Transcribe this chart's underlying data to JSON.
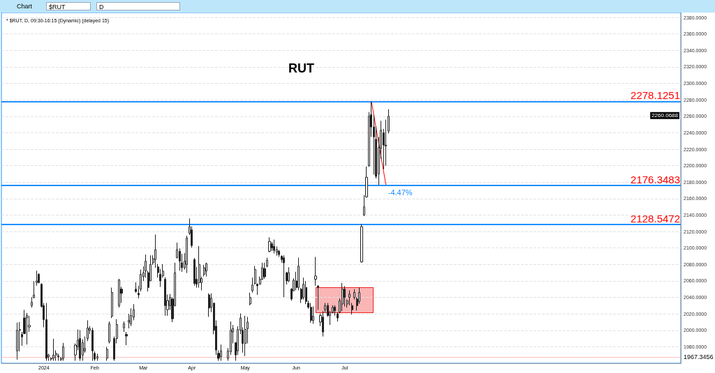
{
  "chart_data": {
    "type": "candlestick",
    "title": "RUT",
    "subtitle": "* $RUT, D, 09:30-16:15 (Dynamic) (delayed 15)",
    "color": "#222222",
    "categories": [
      null,
      null,
      null,
      null,
      null,
      null,
      null,
      null,
      null,
      null,
      null,
      null,
      null,
      null,
      null,
      null,
      null,
      "2024",
      null,
      null,
      null,
      null,
      null,
      null,
      null,
      null,
      null,
      null,
      null,
      null,
      null,
      null,
      null,
      null,
      null,
      null,
      null,
      null,
      "Feb",
      null,
      null,
      null,
      null,
      null,
      null,
      null,
      null,
      null,
      null,
      null,
      null,
      null,
      null,
      null,
      null,
      null,
      null,
      null,
      "Mar",
      null,
      null,
      null,
      null,
      null,
      null,
      null,
      null,
      null,
      null,
      null,
      null,
      null,
      null,
      null,
      null,
      null,
      null,
      null,
      "Apr",
      null,
      null,
      null,
      null,
      null,
      null,
      null,
      null,
      null,
      null,
      null,
      null,
      null,
      null,
      null,
      null,
      null,
      null,
      null,
      null,
      null,
      "May",
      null,
      null,
      null,
      null,
      null,
      null,
      null,
      null,
      null,
      null,
      null,
      null,
      null,
      null,
      null,
      null,
      null,
      null,
      null,
      null,
      "Jun",
      null,
      null,
      null,
      null,
      null,
      null,
      null,
      null,
      null,
      null,
      null,
      null,
      null,
      null,
      null,
      null,
      null,
      null,
      null,
      "Jul",
      null,
      null,
      null,
      null,
      null,
      null,
      null,
      null,
      null,
      null,
      null,
      null,
      null,
      null,
      null,
      null,
      null,
      null,
      null,
      null,
      null,
      null,
      null,
      null,
      null,
      null,
      null,
      null,
      null,
      null,
      null,
      null,
      null,
      null,
      null,
      null,
      null,
      null,
      null,
      null,
      null,
      null,
      null,
      null,
      null,
      null,
      null,
      null,
      null,
      null,
      null,
      null,
      null,
      null,
      null,
      null,
      null,
      null,
      null,
      null,
      null,
      null,
      null,
      null,
      null,
      null,
      null,
      null,
      null,
      null,
      null,
      null,
      null,
      null,
      null,
      null,
      null,
      null,
      null,
      null,
      null,
      null,
      null,
      null,
      null,
      null,
      null,
      null,
      null,
      null,
      null,
      null,
      null,
      null,
      null,
      null,
      null,
      null,
      null,
      null,
      null,
      null,
      null,
      null,
      null,
      null,
      null,
      null,
      null,
      null,
      null,
      null,
      null,
      null,
      null,
      null,
      null,
      null,
      null,
      null,
      null,
      null,
      null,
      null,
      null,
      null,
      null,
      null,
      null,
      null,
      null,
      null,
      null,
      null,
      null,
      null,
      null,
      null
    ],
    "ohlc": [
      null,
      null,
      null,
      null,
      null,
      null,
      [
        1975,
        2009.4,
        1964.5,
        2000
      ],
      [
        2000,
        2010,
        1974.3,
        2001
      ],
      [
        1995,
        1998.1,
        1981.3,
        1992
      ],
      [
        2015,
        2024.8,
        1995.3,
        1996
      ],
      [
        2015,
        2021.1,
        1982.7,
        2018
      ],
      [
        2004,
        2017.7,
        1998.1,
        2006
      ],
      [
        2030,
        2040.2,
        2027.6,
        2034
      ],
      [
        2040,
        2059.8,
        2038.8,
        2043
      ],
      [
        2058,
        2072.4,
        2054.2,
        2060
      ],
      [
        2068,
        2069.6,
        2057,
        2058
      ],
      [
        2056,
        2057,
        2027.6,
        2029
      ],
      [
        2030,
        2033.2,
        2003.7,
        2013
      ],
      [
        2013,
        2033.2,
        1963,
        1966
      ],
      [
        1968,
        1971.5,
        1963,
        1970
      ],
      [
        1965,
        1967.3,
        1963,
        1966
      ],
      [
        1966,
        1989.7,
        1963,
        1970
      ],
      [
        1970,
        1975.7,
        1963,
        1972
      ],
      [
        1968,
        1971.5,
        1963,
        1969
      ],
      [
        1964,
        1967.3,
        1963,
        1966
      ],
      [
        1966,
        1984.7,
        1963,
        1980
      ],
      null,
      null,
      null,
      null,
      [
        1970,
        1984.1,
        1963,
        1982
      ],
      [
        1980,
        2001,
        1975.7,
        1988
      ],
      [
        1990,
        2000.4,
        1963,
        1966
      ],
      [
        1970,
        1989.2,
        1963,
        1985
      ],
      [
        1975,
        1992.5,
        1972.9,
        1978
      ],
      [
        1990,
        2012.1,
        1986.9,
        2003
      ],
      [
        2000,
        2005.1,
        1995.3,
        2002
      ],
      [
        2000,
        2003.2,
        1963,
        1975
      ],
      [
        1972,
        1974.3,
        1963,
        1965
      ],
      [
        1966,
        1971.5,
        1963,
        1968
      ],
      null,
      null,
      null,
      [
        1966,
        1979.9,
        1963,
        1977
      ],
      [
        1986,
        2010.7,
        1984.1,
        2008
      ],
      [
        2017,
        2051.9,
        2014.9,
        2046
      ],
      [
        1990,
        1992.5,
        1963,
        1965
      ],
      [
        1990,
        2013.5,
        1984.1,
        2007
      ],
      [
        2030,
        2062.6,
        2027.6,
        2061
      ],
      [
        2050,
        2052.8,
        2033.2,
        2045
      ],
      [
        2003,
        2010.7,
        1998.1,
        2008
      ],
      [
        1995,
        1998.1,
        1981.9,
        1993
      ],
      [
        2010,
        2020,
        2002.3,
        2012
      ],
      [
        2008,
        2026.7,
        2005.1,
        2018
      ],
      [
        2016,
        2031.8,
        2012.1,
        2025
      ],
      [
        2050,
        2058.4,
        2045.8,
        2047
      ],
      [
        2045,
        2054.2,
        2038.8,
        2043
      ],
      [
        2050,
        2073.8,
        2047.2,
        2068
      ],
      [
        2065,
        2077.7,
        2059.8,
        2070
      ],
      [
        2072,
        2092,
        2064,
        2084
      ],
      [
        2070,
        2072.4,
        2047.2,
        2052
      ],
      [
        2060,
        2091.1,
        2059.8,
        2080
      ],
      [
        2082,
        2091.1,
        2079.4,
        2087
      ],
      [
        2086,
        2116.3,
        2076,
        2098
      ],
      [
        2077,
        2080.5,
        2064,
        2070
      ],
      [
        2068,
        2074.6,
        2052.8,
        2060
      ],
      [
        2066,
        2080.5,
        2064,
        2072
      ],
      [
        2062,
        2064.5,
        2017.7,
        2030
      ],
      [
        2025,
        2043.5,
        2017.7,
        2036
      ],
      [
        2030,
        2044.1,
        2024.8,
        2040
      ],
      [
        2038,
        2040.2,
        2009.9,
        2014
      ],
      [
        2030,
        2082.2,
        2029,
        2070
      ],
      [
        2088,
        2106.5,
        2087.8,
        2098
      ],
      [
        2096,
        2099.5,
        2072.4,
        2084
      ],
      [
        2082,
        2092.8,
        2071,
        2076
      ],
      [
        2076,
        2093.9,
        2073.8,
        2084
      ],
      [
        2080,
        2114.9,
        2069.6,
        2112
      ],
      [
        2118,
        2135.9,
        2115.8,
        2126
      ],
      [
        2122,
        2126.1,
        2100.4,
        2103
      ],
      [
        2086,
        2087.8,
        2054.2,
        2057
      ],
      [
        2062,
        2077.1,
        2051.9,
        2056
      ],
      [
        2058,
        2102.3,
        2051.9,
        2080
      ],
      [
        2058,
        2065.4,
        2048.6,
        2063
      ],
      [
        2068,
        2079.4,
        2065.4,
        2076
      ],
      [
        2072,
        2082.2,
        2065.4,
        2081
      ],
      [
        2043,
        2044.9,
        2016.3,
        2027
      ],
      [
        2028,
        2044.9,
        2022,
        2039
      ],
      [
        2033,
        2033.2,
        1995.3,
        2000
      ],
      [
        2005,
        2012.1,
        1970.1,
        1976
      ],
      [
        1972,
        1975.7,
        1963,
        1966
      ],
      [
        1968,
        1982.7,
        1963,
        1975
      ],
      null,
      null,
      [
        1966,
        1978.5,
        1963,
        1975
      ],
      [
        1974,
        2010.7,
        1970.1,
        2000
      ],
      [
        1998,
        2006.5,
        1984.1,
        2002
      ],
      [
        1985,
        1985.5,
        1963,
        1970
      ],
      [
        1975,
        2005.1,
        1970.1,
        2001
      ],
      [
        2000,
        2020.5,
        1995.3,
        2015
      ],
      [
        2000,
        2003.7,
        1972.9,
        1984
      ],
      [
        1984,
        2017.7,
        1968.7,
        2001
      ],
      [
        2002,
        2016.3,
        1984.1,
        2010
      ],
      [
        2032,
        2045.8,
        2030.4,
        2040
      ],
      [
        2048,
        2064,
        2045.8,
        2055
      ],
      [
        2057,
        2078,
        2055.6,
        2074
      ],
      [
        2056,
        2057,
        2043,
        2054
      ],
      [
        2056,
        2065.4,
        2055.6,
        2062
      ],
      [
        2062,
        2082.2,
        2061.2,
        2076
      ],
      [
        2075,
        2082.2,
        2062.6,
        2065
      ],
      [
        2078,
        2088.3,
        2076.6,
        2085
      ],
      [
        2096,
        2113,
        2094.8,
        2108
      ],
      [
        2105,
        2107.4,
        2096.2,
        2100
      ],
      [
        2102,
        2110.2,
        2093.4,
        2097
      ],
      [
        2095,
        2101.8,
        2090.6,
        2098
      ],
      [
        2096,
        2097.6,
        2089.2,
        2092
      ],
      [
        2090,
        2091.1,
        2082.2,
        2086
      ],
      [
        2088,
        2091.1,
        2040.2,
        2082
      ],
      [
        2070,
        2071,
        2055.6,
        2060
      ],
      [
        2060,
        2076.6,
        2058.4,
        2070
      ],
      [
        2050,
        2051.4,
        2036,
        2038
      ],
      [
        2048,
        2063.1,
        2047.2,
        2061
      ],
      [
        2060,
        2071,
        2048.6,
        2052
      ],
      [
        2052,
        2088.3,
        2048.6,
        2078
      ],
      [
        2050,
        2051.4,
        2033.2,
        2038
      ],
      [
        2040,
        2064,
        2037.4,
        2056
      ],
      [
        2052,
        2059.8,
        2031.8,
        2035
      ],
      [
        2033,
        2036,
        2026.2,
        2028
      ],
      [
        2028,
        2033.2,
        2009.3,
        2012
      ],
      [
        2012,
        2029,
        2007.9,
        2017
      ],
      [
        2062,
        2089.2,
        2054.2,
        2066
      ],
      [
        2054,
        2054.2,
        2024.8,
        2052
      ],
      [
        2010,
        2020.5,
        2005.1,
        2018
      ],
      [
        2016,
        2023.3,
        1992.5,
        1998
      ],
      [
        2025,
        2033.2,
        2021.9,
        2030
      ],
      [
        2030,
        2033.2,
        2016.3,
        2018
      ],
      [
        2018,
        2023.3,
        2006.5,
        2022
      ],
      [
        2022,
        2030.4,
        2020.5,
        2028
      ],
      [
        2028,
        2030.4,
        2017.7,
        2024
      ],
      [
        2020,
        2022,
        2010.7,
        2015
      ],
      [
        2022,
        2038.8,
        2020.5,
        2036
      ],
      [
        2032,
        2057.5,
        2023.3,
        2050
      ],
      [
        2050,
        2053.6,
        2029,
        2040
      ],
      [
        2032,
        2037.4,
        2027.6,
        2036
      ],
      [
        2040,
        2048.6,
        2030.4,
        2044
      ],
      [
        2030,
        2033.2,
        2019.1,
        2025
      ],
      [
        2040,
        2050,
        2037.4,
        2046
      ],
      [
        2038,
        2040.2,
        2024,
        2030
      ],
      [
        2035,
        2051.9,
        2032.3,
        2046
      ],
      [
        2083,
        2129.3,
        2082.2,
        2126
      ],
      [
        2140,
        2164.3,
        2138.8,
        2150
      ],
      [
        2162,
        2199,
        2161.2,
        2186
      ],
      [
        2200,
        2265.1,
        2198.5,
        2260
      ],
      [
        2262,
        2278.1,
        2234.9,
        2247
      ],
      [
        2247,
        2261.5,
        2189.2,
        2235
      ],
      [
        2232,
        2247.5,
        2184.5,
        2187
      ],
      [
        2190,
        2234.9,
        2176.3,
        2222
      ],
      [
        2221,
        2254.5,
        2208.3,
        2243
      ],
      [
        2240,
        2244.7,
        2195.7,
        2225
      ],
      [
        2225,
        2255.9,
        2199.9,
        2224
      ],
      [
        2242,
        2268.5,
        2239.1,
        2260.0688
      ],
      null,
      null,
      null,
      null,
      null,
      null,
      null,
      null,
      null,
      null,
      null,
      null,
      null,
      null,
      null,
      null,
      null,
      null,
      null,
      null,
      null,
      null,
      null,
      null,
      null,
      null,
      null,
      null,
      null,
      null,
      null,
      null,
      null,
      null,
      null,
      null,
      null,
      null,
      null,
      null,
      null,
      null,
      null,
      null,
      null,
      null,
      null,
      null,
      null,
      null,
      null,
      null,
      null,
      null,
      null,
      null,
      null,
      null,
      null,
      null,
      null,
      null,
      null,
      null,
      null,
      null,
      null,
      null,
      null,
      null,
      null,
      null,
      null,
      null,
      null,
      null,
      null,
      null,
      null,
      null,
      null,
      null,
      null,
      null,
      null,
      null,
      null,
      null,
      null,
      null,
      null,
      null,
      null,
      null,
      null,
      null,
      null,
      null,
      null,
      null,
      null,
      null,
      null,
      null,
      null,
      null,
      null,
      null,
      null,
      null,
      null,
      null,
      null,
      null,
      null,
      null,
      null,
      null,
      null,
      null
    ],
    "series": [
      {
        "type": "line",
        "color": "#ff0000",
        "values": [
          null,
          null,
          null,
          null,
          null,
          null,
          null,
          null,
          null,
          null,
          null,
          null,
          null,
          null,
          null,
          null,
          null,
          null,
          null,
          null,
          null,
          null,
          null,
          null,
          null,
          null,
          null,
          null,
          null,
          null,
          null,
          null,
          null,
          null,
          null,
          null,
          null,
          null,
          null,
          null,
          null,
          null,
          null,
          null,
          null,
          null,
          null,
          null,
          null,
          null,
          null,
          null,
          null,
          null,
          null,
          null,
          null,
          null,
          null,
          null,
          null,
          null,
          null,
          null,
          null,
          null,
          null,
          null,
          null,
          null,
          null,
          null,
          null,
          null,
          null,
          null,
          null,
          null,
          null,
          null,
          null,
          null,
          null,
          null,
          null,
          null,
          null,
          null,
          null,
          null,
          null,
          null,
          null,
          null,
          null,
          null,
          null,
          null,
          null,
          null,
          null,
          null,
          null,
          null,
          null,
          null,
          null,
          null,
          null,
          null,
          null,
          null,
          null,
          null,
          null,
          null,
          null,
          null,
          null,
          null,
          null,
          null,
          null,
          null,
          null,
          null,
          null,
          null,
          null,
          null,
          null,
          null,
          null,
          null,
          null,
          null,
          null,
          null,
          null,
          null,
          null,
          null,
          null,
          null,
          null,
          null,
          null,
          null,
          null,
          null,
          null,
          null,
          2278.1251,
          null,
          null,
          null,
          null,
          null,
          2176.3483,
          null,
          null,
          null,
          null,
          null,
          null,
          null,
          null,
          null,
          null,
          null,
          null,
          null,
          null,
          null,
          null,
          null,
          null,
          null,
          null,
          null,
          null,
          null,
          null,
          null,
          null,
          null,
          null,
          null,
          null,
          null,
          null,
          null,
          null,
          null,
          null,
          null,
          null,
          null,
          null,
          null,
          null,
          null,
          null,
          null,
          null,
          null,
          null,
          null,
          null,
          null,
          null,
          null,
          null,
          null,
          null,
          null,
          null,
          null,
          null,
          null,
          null,
          null,
          null,
          null,
          null,
          null,
          null,
          null,
          null,
          null,
          null,
          null,
          null,
          null,
          null,
          null,
          null,
          null,
          null,
          null,
          null,
          null,
          null,
          null,
          null,
          null,
          null,
          null,
          null,
          null,
          null,
          null,
          null,
          null,
          null,
          null,
          null,
          null,
          null,
          null,
          null,
          null,
          null,
          null,
          null,
          null,
          null,
          null,
          null,
          null,
          null,
          null,
          null,
          null,
          null,
          null,
          null,
          null,
          null,
          null
        ]
      }
    ],
    "ylim": [
      1960,
      2386
    ],
    "yticks": [
      {
        "value": 1980,
        "label": "1980.0000"
      },
      {
        "value": 2000,
        "label": "2000.0000"
      },
      {
        "value": 2020,
        "label": "2020.0000"
      },
      {
        "value": 2040,
        "label": "2040.0000"
      },
      {
        "value": 2060,
        "label": "2060.0000"
      },
      {
        "value": 2080,
        "label": "2080.0000"
      },
      {
        "value": 2100,
        "label": "2100.0000"
      },
      {
        "value": 2120,
        "label": "2120.0000"
      },
      {
        "value": 2140,
        "label": "2140.0000"
      },
      {
        "value": 2160,
        "label": "2160.0000"
      },
      {
        "value": 2180,
        "label": "2180.0000"
      },
      {
        "value": 2200,
        "label": "2200.0000"
      },
      {
        "value": 2220,
        "label": "2220.0000"
      },
      {
        "value": 2240,
        "label": "2240.0000"
      },
      {
        "value": 2260,
        "label": "2260.0000"
      },
      {
        "value": 2280,
        "label": "2280.0000"
      },
      {
        "value": 2300,
        "label": "2300.0000"
      },
      {
        "value": 2320,
        "label": "2320.0000"
      },
      {
        "value": 2340,
        "label": "2340.0000"
      },
      {
        "value": 2360,
        "label": "2360.0000"
      },
      {
        "value": 2380,
        "label": "2380.0000"
      }
    ],
    "grid": "y",
    "ref_lines": [
      {
        "axis": "y",
        "value": 2278.1251,
        "label": "2278.1251",
        "color": "#1e90ff"
      },
      {
        "axis": "y",
        "value": 2176.3483,
        "label": "2176.3483",
        "color": "#1e90ff"
      },
      {
        "axis": "y",
        "value": 2128.5472,
        "label": "2128.5472",
        "color": "#1e90ff"
      },
      {
        "axis": "y",
        "value": 1967.3456,
        "label": "1967.3456",
        "color": "#ff8080",
        "line_style": "dotted"
      }
    ],
    "annotations": [
      {
        "text": "-4.47%",
        "y": 2172
      },
      "2260.0688",
      "Chart",
      "$RUT",
      "D"
    ]
  }
}
